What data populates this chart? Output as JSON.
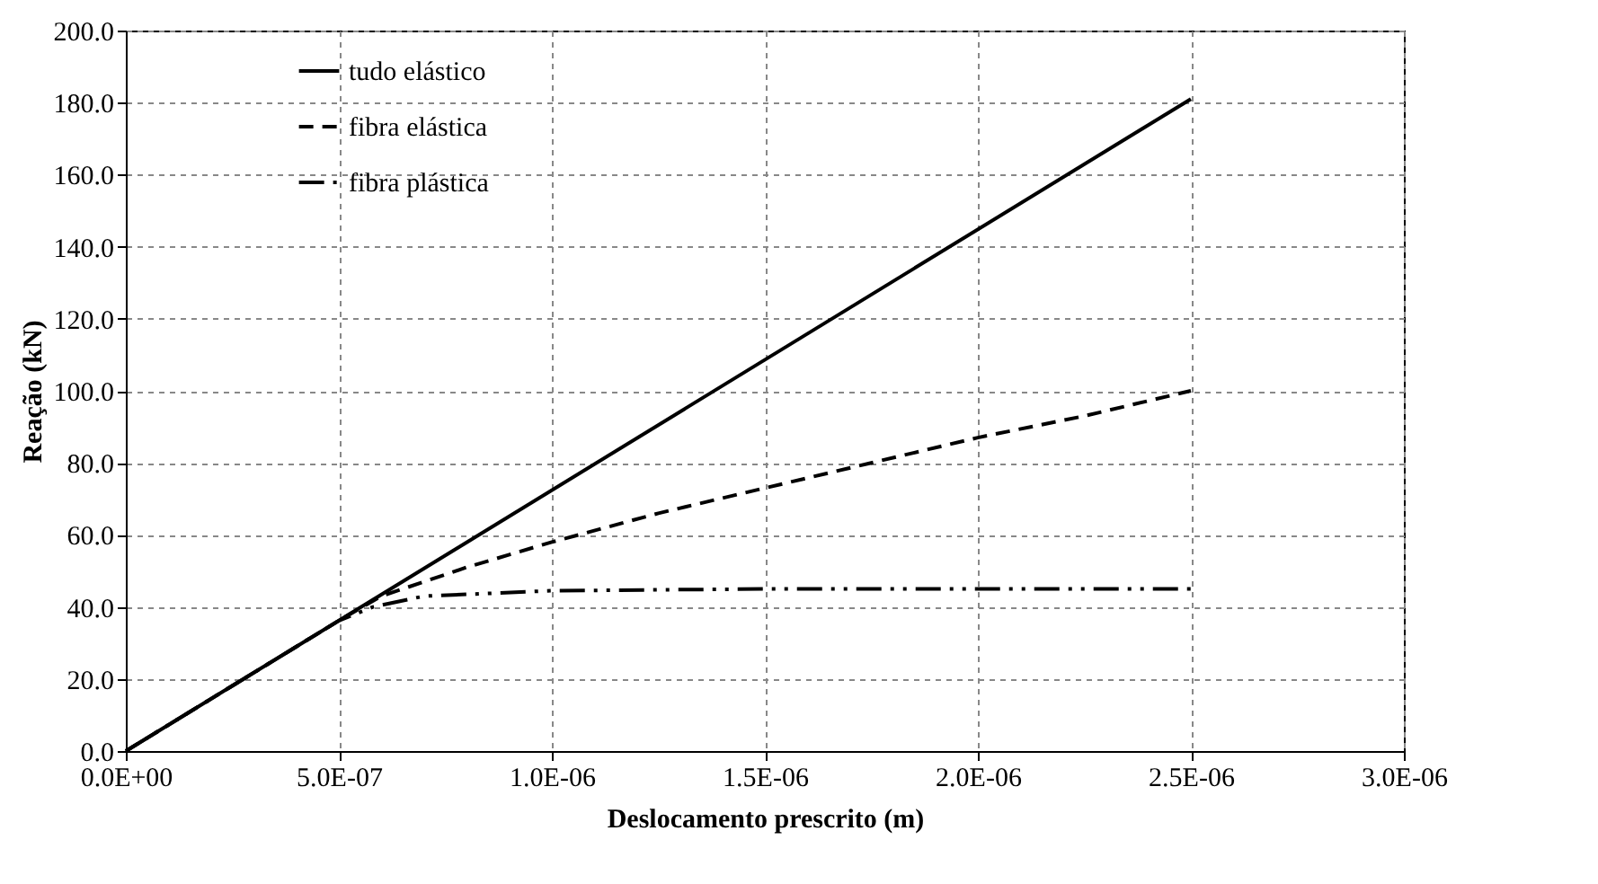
{
  "chart_data": {
    "type": "line",
    "xlabel": "Deslocamento  prescrito (m)",
    "ylabel": "Reação  (kN)",
    "xlim": [
      0,
      3e-06
    ],
    "xticks": [
      {
        "value": 0,
        "label": "0.0E+00"
      },
      {
        "value": 5e-07,
        "label": "5.0E-07"
      },
      {
        "value": 1e-06,
        "label": "1.0E-06"
      },
      {
        "value": 1.5e-06,
        "label": "1.5E-06"
      },
      {
        "value": 2e-06,
        "label": "2.0E-06"
      },
      {
        "value": 2.5e-06,
        "label": "2.5E-06"
      },
      {
        "value": 3e-06,
        "label": "3.0E-06"
      }
    ],
    "ylim": [
      0,
      200
    ],
    "yticks": [
      {
        "value": 0,
        "label": "0.0"
      },
      {
        "value": 20,
        "label": "20.0"
      },
      {
        "value": 40,
        "label": "40.0"
      },
      {
        "value": 60,
        "label": "60.0"
      },
      {
        "value": 80,
        "label": "80.0"
      },
      {
        "value": 100,
        "label": "100.0"
      },
      {
        "value": 120,
        "label": "120.0"
      },
      {
        "value": 140,
        "label": "140.0"
      },
      {
        "value": 160,
        "label": "160.0"
      },
      {
        "value": 180,
        "label": "180.0"
      },
      {
        "value": 200,
        "label": "200.0"
      }
    ],
    "grid": true,
    "legend": "top left",
    "marker": "none",
    "series": [
      {
        "name": "tudo elástico",
        "color": "#000000",
        "line_style": "solid",
        "x": [
          0,
          2.5e-06
        ],
        "values": [
          0,
          181
        ]
      },
      {
        "name": "fibra elástica",
        "color": "#000000",
        "line_style": "dashed",
        "x": [
          0,
          5e-07,
          6e-07,
          8e-07,
          1e-06,
          1.25e-06,
          1.5e-06,
          1.75e-06,
          2e-06,
          2.25e-06,
          2.5e-06
        ],
        "values": [
          0,
          36.2,
          43,
          51,
          58,
          66,
          73,
          80,
          87,
          93,
          100
        ]
      },
      {
        "name": "fibra plástica",
        "color": "#000000",
        "line_style": "dashdot",
        "x": [
          0,
          5e-07,
          5.8e-07,
          7e-07,
          1e-06,
          1.5e-06,
          2e-06,
          2.5e-06
        ],
        "values": [
          0,
          36.2,
          40,
          43,
          44.5,
          45,
          45,
          45
        ]
      }
    ]
  }
}
